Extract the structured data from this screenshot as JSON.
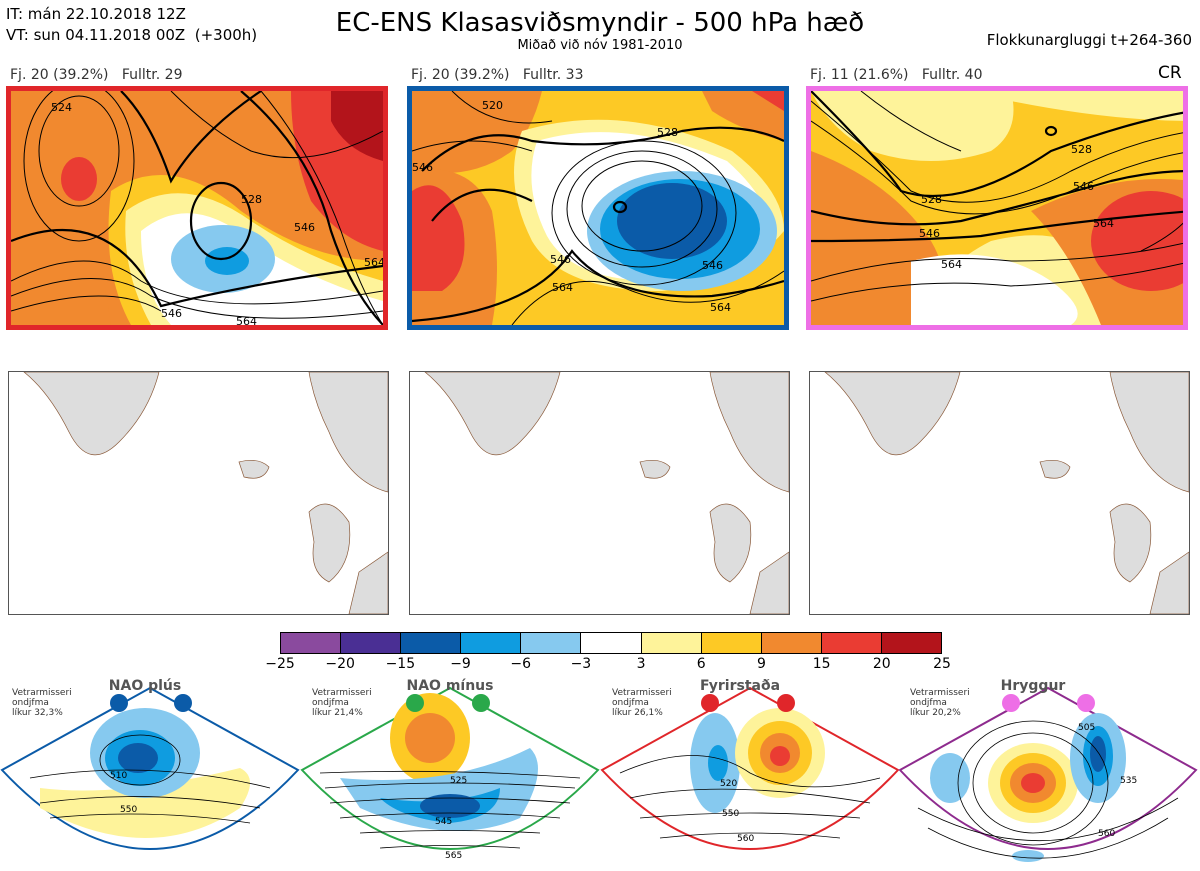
{
  "header": {
    "it_line": "IT: mán 22.10.2018 12Z",
    "vt_line": "VT: sun 04.11.2018 00Z  (+300h)",
    "title": "EC-ENS Klasasviðsmyndir - 500 hPa hæð",
    "subtitle": "Miðað við nóv 1981-2010",
    "window_label": "Flokkunargluggi t+264-360",
    "cr_label": "CR"
  },
  "panels": [
    {
      "label": "Fj. 20 (39.2%)   Fulltr. 29",
      "border_color": "#e0262a",
      "contours": [
        "524",
        "528",
        "546",
        "564",
        "546",
        "564"
      ]
    },
    {
      "label": "Fj. 20 (39.2%)   Fulltr. 33",
      "border_color": "#0b5ba8",
      "contours": [
        "520",
        "528",
        "546",
        "546",
        "564",
        "546",
        "564"
      ]
    },
    {
      "label": "Fj. 11 (21.6%)   Fulltr. 40",
      "border_color": "#ee6fe6",
      "contours": [
        "528",
        "546",
        "528",
        "546",
        "564",
        "564"
      ]
    }
  ],
  "colorbar": {
    "colors": [
      "#8a4a9e",
      "#4a2f94",
      "#0b5ba8",
      "#0f9ce0",
      "#86c9ef",
      "#ffffff",
      "#fef39a",
      "#fdc925",
      "#f1892f",
      "#ea3c33",
      "#b3141b"
    ],
    "ticks": [
      "−25",
      "−20",
      "−15",
      "−9",
      "−6",
      "−3",
      "3",
      "6",
      "9",
      "15",
      "20",
      "25"
    ]
  },
  "regimes": [
    {
      "name": "NAO plús",
      "info": "Vetrarmisseri\nondjfma\nlíkur 32,3%",
      "color": "#0b5ba8",
      "contours": [
        "510",
        "550"
      ]
    },
    {
      "name": "NAO mínus",
      "info": "Vetrarmisseri\nondjfma\nlíkur 21,4%",
      "color": "#2aa84a",
      "contours": [
        "525",
        "545",
        "565"
      ]
    },
    {
      "name": "Fyrirstaða",
      "info": "Vetrarmisseri\nondjfma\nlíkur 26,1%",
      "color": "#e0262a",
      "contours": [
        "520",
        "550",
        "560"
      ]
    },
    {
      "name": "Hryggur",
      "info": "Vetrarmisseri\nondjfma\nlíkur 20,2%",
      "color": "#8e2b8e",
      "dot_color": "#ee6fe6",
      "contours": [
        "505",
        "535",
        "560"
      ]
    }
  ]
}
